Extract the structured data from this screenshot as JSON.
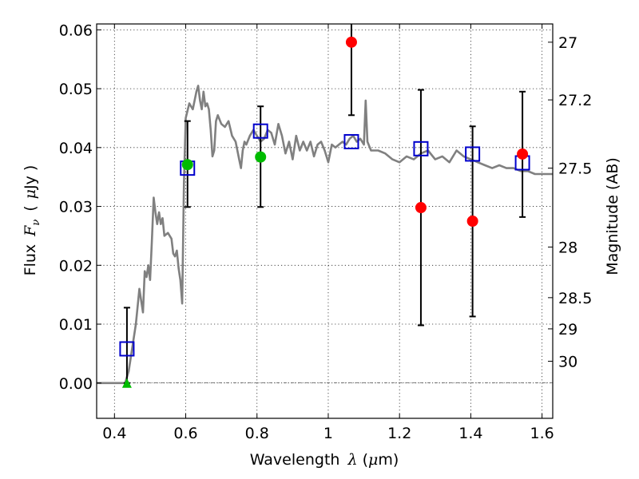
{
  "chart_data": {
    "type": "scatter",
    "xlabel_text": "Wavelength",
    "xlabel_symbol": "λ",
    "xlabel_unit_open": "(",
    "xlabel_unit_mu": "μ",
    "xlabel_unit_rest": "m)",
    "ylabel_text": "Flux",
    "ylabel_symbol": "F",
    "ylabel_sub": "ν",
    "ylabel_unit_open": "(",
    "ylabel_unit_mu": "μ",
    "ylabel_unit_rest": "Jy )",
    "y2label": "Magnitude (AB)",
    "xlim": [
      0.35,
      1.63
    ],
    "ylim": [
      -0.006,
      0.061
    ],
    "grid": true,
    "x_ticks": [
      0.4,
      0.6,
      0.8,
      1.0,
      1.2,
      1.4,
      1.6
    ],
    "x_tick_labels": [
      "0.4",
      "0.6",
      "0.8",
      "1",
      "1.2",
      "1.4",
      "1.6"
    ],
    "y_ticks": [
      0.0,
      0.01,
      0.02,
      0.03,
      0.04,
      0.05,
      0.06
    ],
    "y_tick_labels": [
      "0.00",
      "0.01",
      "0.02",
      "0.03",
      "0.04",
      "0.05",
      "0.06"
    ],
    "mag_ticks": [
      {
        "label": "27",
        "flux": 0.0579
      },
      {
        "label": "27.2",
        "flux": 0.0481
      },
      {
        "label": "27.5",
        "flux": 0.0365
      },
      {
        "label": "28",
        "flux": 0.0231
      },
      {
        "label": "28.5",
        "flux": 0.0145
      },
      {
        "label": "29",
        "flux": 0.0092
      },
      {
        "label": "30",
        "flux": 0.0037
      }
    ],
    "colors": {
      "model": "#808080",
      "squares": "#0000cc",
      "red": "#ff0000",
      "green": "#00bb00",
      "errorbar": "#000000"
    },
    "model_spectrum": [
      [
        0.35,
        0.0
      ],
      [
        0.43,
        0.0
      ],
      [
        0.44,
        0.002
      ],
      [
        0.45,
        0.006
      ],
      [
        0.46,
        0.01
      ],
      [
        0.47,
        0.016
      ],
      [
        0.48,
        0.012
      ],
      [
        0.485,
        0.019
      ],
      [
        0.49,
        0.018
      ],
      [
        0.495,
        0.02
      ],
      [
        0.5,
        0.0175
      ],
      [
        0.505,
        0.024
      ],
      [
        0.51,
        0.0315
      ],
      [
        0.515,
        0.029
      ],
      [
        0.52,
        0.027
      ],
      [
        0.525,
        0.029
      ],
      [
        0.53,
        0.027
      ],
      [
        0.535,
        0.028
      ],
      [
        0.54,
        0.025
      ],
      [
        0.55,
        0.0255
      ],
      [
        0.56,
        0.0245
      ],
      [
        0.565,
        0.022
      ],
      [
        0.57,
        0.0215
      ],
      [
        0.575,
        0.0225
      ],
      [
        0.58,
        0.0195
      ],
      [
        0.585,
        0.0175
      ],
      [
        0.59,
        0.0135
      ],
      [
        0.595,
        0.034
      ],
      [
        0.6,
        0.045
      ],
      [
        0.61,
        0.0475
      ],
      [
        0.62,
        0.0465
      ],
      [
        0.63,
        0.0495
      ],
      [
        0.635,
        0.0505
      ],
      [
        0.64,
        0.048
      ],
      [
        0.645,
        0.0465
      ],
      [
        0.65,
        0.0495
      ],
      [
        0.655,
        0.047
      ],
      [
        0.66,
        0.0475
      ],
      [
        0.665,
        0.0465
      ],
      [
        0.67,
        0.043
      ],
      [
        0.675,
        0.0385
      ],
      [
        0.68,
        0.0395
      ],
      [
        0.685,
        0.0445
      ],
      [
        0.69,
        0.0455
      ],
      [
        0.7,
        0.044
      ],
      [
        0.71,
        0.0435
      ],
      [
        0.72,
        0.0445
      ],
      [
        0.73,
        0.042
      ],
      [
        0.74,
        0.041
      ],
      [
        0.75,
        0.038
      ],
      [
        0.755,
        0.0365
      ],
      [
        0.76,
        0.0395
      ],
      [
        0.765,
        0.041
      ],
      [
        0.77,
        0.0405
      ],
      [
        0.78,
        0.042
      ],
      [
        0.79,
        0.043
      ],
      [
        0.8,
        0.042
      ],
      [
        0.81,
        0.041
      ],
      [
        0.82,
        0.0415
      ],
      [
        0.83,
        0.043
      ],
      [
        0.84,
        0.0425
      ],
      [
        0.85,
        0.0405
      ],
      [
        0.86,
        0.044
      ],
      [
        0.87,
        0.042
      ],
      [
        0.88,
        0.039
      ],
      [
        0.89,
        0.041
      ],
      [
        0.9,
        0.038
      ],
      [
        0.91,
        0.042
      ],
      [
        0.92,
        0.0395
      ],
      [
        0.93,
        0.041
      ],
      [
        0.94,
        0.0395
      ],
      [
        0.95,
        0.041
      ],
      [
        0.96,
        0.0385
      ],
      [
        0.97,
        0.0405
      ],
      [
        0.98,
        0.041
      ],
      [
        0.99,
        0.0395
      ],
      [
        1.0,
        0.0375
      ],
      [
        1.01,
        0.0405
      ],
      [
        1.02,
        0.04
      ],
      [
        1.03,
        0.0405
      ],
      [
        1.04,
        0.041
      ],
      [
        1.05,
        0.0405
      ],
      [
        1.06,
        0.0415
      ],
      [
        1.07,
        0.042
      ],
      [
        1.08,
        0.041
      ],
      [
        1.09,
        0.0415
      ],
      [
        1.1,
        0.0405
      ],
      [
        1.105,
        0.048
      ],
      [
        1.11,
        0.041
      ],
      [
        1.12,
        0.0395
      ],
      [
        1.14,
        0.0395
      ],
      [
        1.16,
        0.039
      ],
      [
        1.18,
        0.038
      ],
      [
        1.2,
        0.0375
      ],
      [
        1.22,
        0.0385
      ],
      [
        1.24,
        0.038
      ],
      [
        1.26,
        0.039
      ],
      [
        1.28,
        0.0395
      ],
      [
        1.3,
        0.038
      ],
      [
        1.32,
        0.0385
      ],
      [
        1.34,
        0.0375
      ],
      [
        1.36,
        0.0395
      ],
      [
        1.38,
        0.0385
      ],
      [
        1.4,
        0.038
      ],
      [
        1.42,
        0.0375
      ],
      [
        1.44,
        0.037
      ],
      [
        1.46,
        0.0365
      ],
      [
        1.48,
        0.037
      ],
      [
        1.5,
        0.0365
      ],
      [
        1.52,
        0.0365
      ],
      [
        1.54,
        0.036
      ],
      [
        1.56,
        0.036
      ],
      [
        1.58,
        0.0355
      ],
      [
        1.6,
        0.0355
      ],
      [
        1.62,
        0.0355
      ],
      [
        1.63,
        0.0355
      ]
    ],
    "squares": [
      {
        "x": 0.435,
        "y": 0.0058
      },
      {
        "x": 0.605,
        "y": 0.0365
      },
      {
        "x": 0.81,
        "y": 0.0428
      },
      {
        "x": 1.065,
        "y": 0.041
      },
      {
        "x": 1.26,
        "y": 0.0398
      },
      {
        "x": 1.405,
        "y": 0.0389
      },
      {
        "x": 1.545,
        "y": 0.0374
      }
    ],
    "red_points": [
      {
        "x": 1.065,
        "y": 0.0579,
        "err_lo": 0.0455,
        "err_hi": 0.0615
      },
      {
        "x": 1.26,
        "y": 0.0298,
        "err_lo": 0.0098,
        "err_hi": 0.0498
      },
      {
        "x": 1.405,
        "y": 0.0275,
        "err_lo": 0.0113,
        "err_hi": 0.0436
      },
      {
        "x": 1.545,
        "y": 0.0389,
        "err_lo": 0.0282,
        "err_hi": 0.0495
      }
    ],
    "green_points": [
      {
        "x": 0.605,
        "y": 0.0371,
        "err_lo": 0.0299,
        "err_hi": 0.0445
      },
      {
        "x": 0.81,
        "y": 0.0384,
        "err_lo": 0.0299,
        "err_hi": 0.047
      }
    ],
    "green_triangles": [
      {
        "x": 0.435,
        "y": 0.0,
        "err_lo": 0.0,
        "err_hi": 0.0128
      }
    ]
  }
}
